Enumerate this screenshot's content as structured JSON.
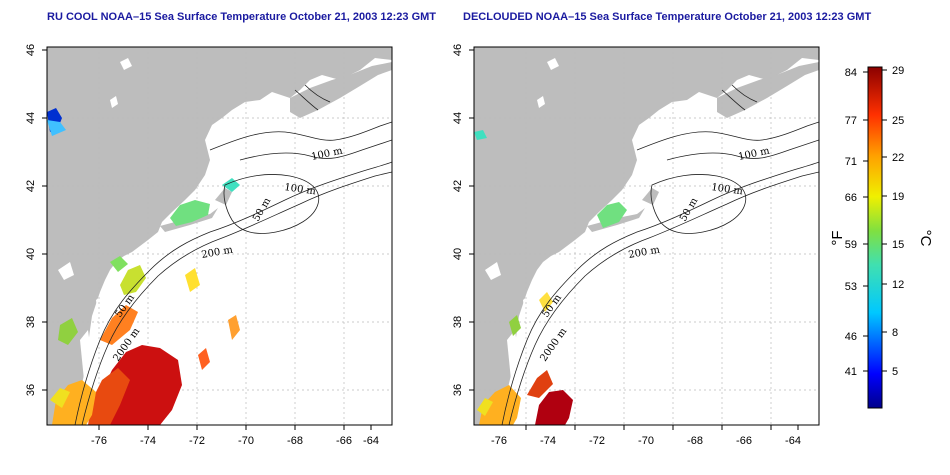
{
  "panels": [
    {
      "title": "RU COOL NOAA–15 Sea Surface Temperature October 21, 2003 12:23 GMT",
      "contour_labels": [
        "100 m",
        "100 m",
        "50 m",
        "200 m",
        "50 m",
        "2000 m"
      ],
      "clouded": true
    },
    {
      "title": "DECLOUDED NOAA–15 Sea Surface Temperature October 21, 2003 12:23 GMT",
      "contour_labels": [
        "100 m",
        "100 m",
        "50 m",
        "200 m",
        "50 m",
        "2000 m"
      ],
      "clouded": false
    }
  ],
  "axes": {
    "x_ticks": [
      "-76",
      "-74",
      "-72",
      "-70",
      "-68",
      "-66",
      "-64"
    ],
    "y_ticks": [
      "46",
      "44",
      "42",
      "40",
      "38",
      "36"
    ]
  },
  "colorbar": {
    "f_label": "°F",
    "c_label": "°C",
    "f_ticks": [
      "84",
      "77",
      "71",
      "66",
      "59",
      "53",
      "46",
      "41"
    ],
    "c_ticks": [
      "29",
      "25",
      "22",
      "19",
      "15",
      "12",
      "8",
      "5"
    ]
  },
  "colors": {
    "land": "#bdbdbd",
    "water": "#ffffff",
    "grid": "#bbbbbb",
    "title": "#1a1aa0"
  }
}
